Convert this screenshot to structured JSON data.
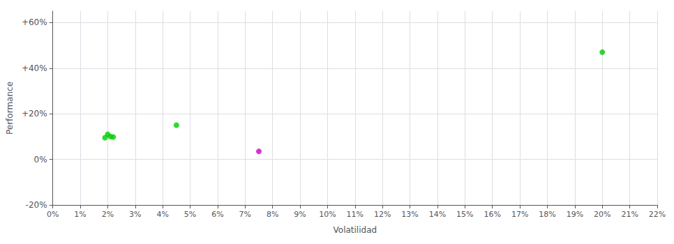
{
  "chart_data": {
    "type": "scatter",
    "xlabel": "Volatilidad",
    "ylabel": "Performance",
    "x": [
      0.019,
      0.02,
      0.021,
      0.022,
      0.045,
      0.075,
      0.2
    ],
    "values": [
      0.095,
      0.11,
      0.1,
      0.098,
      0.15,
      0.035,
      0.47
    ],
    "colors": [
      "#00cc00",
      "#00cc00",
      "#00cc00",
      "#00cc00",
      "#00cc00",
      "#cc00cc",
      "#00cc00"
    ],
    "xlim": [
      0,
      0.22
    ],
    "ylim": [
      -0.2,
      0.65
    ],
    "xticks": [
      {
        "value": 0.0,
        "label": "0%"
      },
      {
        "value": 0.01,
        "label": "1%"
      },
      {
        "value": 0.02,
        "label": "2%"
      },
      {
        "value": 0.03,
        "label": "3%"
      },
      {
        "value": 0.04,
        "label": "4%"
      },
      {
        "value": 0.05,
        "label": "5%"
      },
      {
        "value": 0.06,
        "label": "6%"
      },
      {
        "value": 0.07,
        "label": "7%"
      },
      {
        "value": 0.08,
        "label": "8%"
      },
      {
        "value": 0.09,
        "label": "9%"
      },
      {
        "value": 0.1,
        "label": "10%"
      },
      {
        "value": 0.11,
        "label": "11%"
      },
      {
        "value": 0.12,
        "label": "12%"
      },
      {
        "value": 0.13,
        "label": "13%"
      },
      {
        "value": 0.14,
        "label": "14%"
      },
      {
        "value": 0.15,
        "label": "15%"
      },
      {
        "value": 0.16,
        "label": "16%"
      },
      {
        "value": 0.17,
        "label": "17%"
      },
      {
        "value": 0.18,
        "label": "18%"
      },
      {
        "value": 0.19,
        "label": "19%"
      },
      {
        "value": 0.2,
        "label": "20%"
      },
      {
        "value": 0.21,
        "label": "21%"
      },
      {
        "value": 0.22,
        "label": "22%"
      }
    ],
    "yticks": [
      {
        "value": -0.2,
        "label": "-20%"
      },
      {
        "value": 0.0,
        "label": "0%"
      },
      {
        "value": 0.2,
        "label": "+20%"
      },
      {
        "value": 0.4,
        "label": "+40%"
      },
      {
        "value": 0.6,
        "label": "+60%"
      }
    ],
    "grid": true
  }
}
